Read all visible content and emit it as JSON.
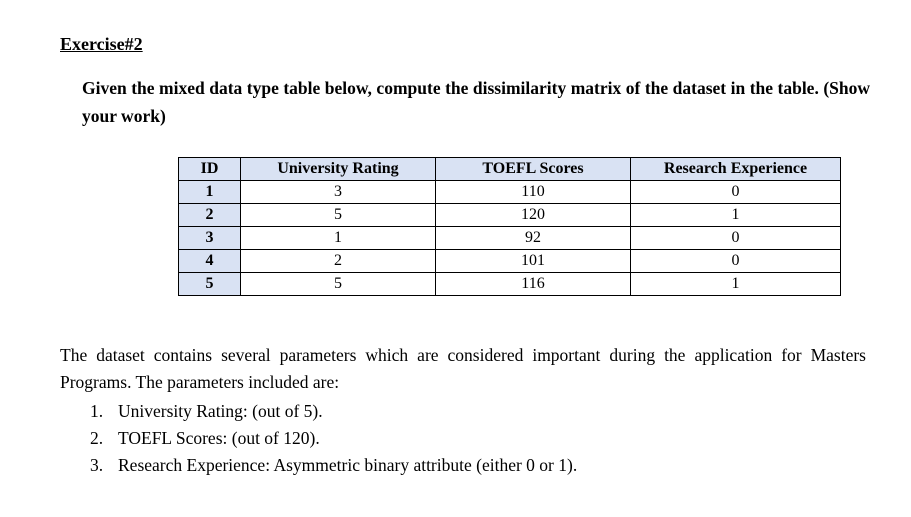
{
  "page": {
    "heading": "Exercise#2",
    "prompt": "Given the mixed data type table below, compute the dissimilarity matrix of the dataset in the table. (Show your work)",
    "description": "The dataset contains several parameters which are considered important during the application for Masters Programs. The parameters included are:",
    "colors": {
      "table_header_bg": "#d9e2f3",
      "table_border": "#000000",
      "text": "#000000",
      "page_bg": "#ffffff"
    }
  },
  "table": {
    "headers": [
      "ID",
      "University Rating",
      "TOEFL Scores",
      "Research Experience"
    ],
    "rows": [
      [
        "1",
        "3",
        "110",
        "0"
      ],
      [
        "2",
        "5",
        "120",
        "1"
      ],
      [
        "3",
        "1",
        "92",
        "0"
      ],
      [
        "4",
        "2",
        "101",
        "0"
      ],
      [
        "5",
        "5",
        "116",
        "1"
      ]
    ]
  },
  "list": {
    "items": [
      {
        "number": "1.",
        "text": "University Rating: (out of 5)."
      },
      {
        "number": "2.",
        "text": "TOEFL Scores: (out of 120)."
      },
      {
        "number": "3.",
        "text": "Research Experience: Asymmetric binary attribute (either 0 or 1)."
      }
    ]
  }
}
